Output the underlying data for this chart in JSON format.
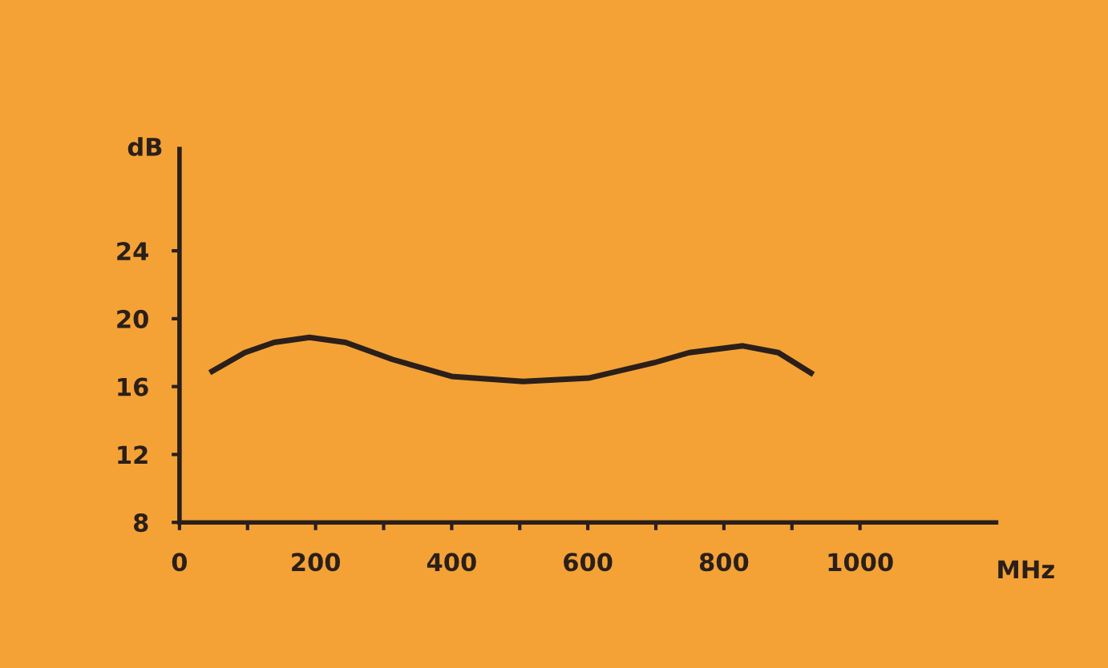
{
  "chart_data": {
    "type": "line",
    "xlabel": "MHz",
    "ylabel": "dB",
    "x": [
      48,
      96,
      139,
      191,
      244,
      313,
      400,
      505,
      601,
      697,
      749,
      828,
      880,
      928
    ],
    "series": [
      {
        "color": "#2a1f1a",
        "values": [
          16.9,
          18.0,
          18.6,
          18.9,
          18.6,
          17.6,
          16.6,
          16.3,
          16.5,
          17.4,
          18.0,
          18.4,
          18.0,
          16.8
        ]
      }
    ],
    "xlim": [
      0,
      1200
    ],
    "ylim": [
      8,
      30
    ],
    "xticks": [
      0,
      {
        "value": 100,
        "label": null
      },
      200,
      {
        "value": 300,
        "label": null
      },
      400,
      {
        "value": 500,
        "label": null
      },
      600,
      {
        "value": 700,
        "label": null
      },
      800,
      {
        "value": 900,
        "label": null
      },
      1000
    ],
    "yticks": [
      8,
      12,
      16,
      20,
      24
    ],
    "grid": false,
    "legend": false,
    "marker": "none",
    "line_style": "solid"
  }
}
